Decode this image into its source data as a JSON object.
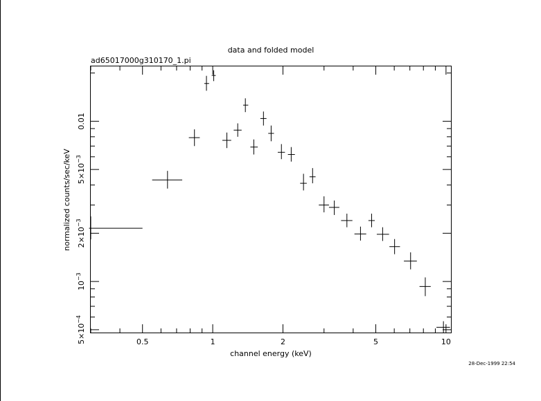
{
  "chart_data": {
    "type": "scatter",
    "title": "data and folded model",
    "subtitle": "ad65017000g310170_1.pi",
    "xlabel": "channel energy (keV)",
    "ylabel": "normalized counts/sec/keV",
    "timestamp": "28-Dec-1999 22:54",
    "xscale": "log",
    "yscale": "log",
    "xlim": [
      0.3,
      10.5
    ],
    "ylim": [
      0.00048,
      0.022
    ],
    "x_ticks": [
      {
        "value": 0.5,
        "label": "0.5"
      },
      {
        "value": 1,
        "label": "1"
      },
      {
        "value": 2,
        "label": "2"
      },
      {
        "value": 5,
        "label": "5"
      },
      {
        "value": 10,
        "label": "10"
      }
    ],
    "y_ticks": [
      {
        "value": 0.0005,
        "mantissa": "5×10",
        "exponent": "−4"
      },
      {
        "value": 0.001,
        "mantissa": "10",
        "exponent": "−3"
      },
      {
        "value": 0.002,
        "mantissa": "2×10",
        "exponent": "−3"
      },
      {
        "value": 0.005,
        "mantissa": "5×10",
        "exponent": "−3"
      },
      {
        "value": 0.01,
        "mantissa": "0.01",
        "exponent": ""
      }
    ],
    "series": [
      {
        "points": [
          {
            "x": 0.3,
            "xlo": 0.295,
            "xhi": 0.5,
            "y": 0.00215,
            "ylo": 0.00183,
            "yhi": 0.00255
          },
          {
            "x": 0.64,
            "xlo": 0.55,
            "xhi": 0.74,
            "y": 0.0043,
            "ylo": 0.0038,
            "yhi": 0.0049
          },
          {
            "x": 0.835,
            "xlo": 0.79,
            "xhi": 0.88,
            "y": 0.0079,
            "ylo": 0.007,
            "yhi": 0.0089
          },
          {
            "x": 0.94,
            "xlo": 0.92,
            "xhi": 0.965,
            "y": 0.0172,
            "ylo": 0.0155,
            "yhi": 0.0192
          },
          {
            "x": 1.01,
            "xlo": 0.99,
            "xhi": 1.03,
            "y": 0.0193,
            "ylo": 0.0178,
            "yhi": 0.0208
          },
          {
            "x": 1.15,
            "xlo": 1.1,
            "xhi": 1.2,
            "y": 0.0076,
            "ylo": 0.0068,
            "yhi": 0.0085
          },
          {
            "x": 1.28,
            "xlo": 1.23,
            "xhi": 1.33,
            "y": 0.0088,
            "ylo": 0.008,
            "yhi": 0.0097
          },
          {
            "x": 1.38,
            "xlo": 1.35,
            "xhi": 1.42,
            "y": 0.0126,
            "ylo": 0.0114,
            "yhi": 0.0139
          },
          {
            "x": 1.5,
            "xlo": 1.45,
            "xhi": 1.56,
            "y": 0.0069,
            "ylo": 0.0062,
            "yhi": 0.0077
          },
          {
            "x": 1.65,
            "xlo": 1.6,
            "xhi": 1.7,
            "y": 0.0104,
            "ylo": 0.0094,
            "yhi": 0.0115
          },
          {
            "x": 1.78,
            "xlo": 1.73,
            "xhi": 1.83,
            "y": 0.0084,
            "ylo": 0.0075,
            "yhi": 0.0094
          },
          {
            "x": 1.97,
            "xlo": 1.9,
            "xhi": 2.04,
            "y": 0.0064,
            "ylo": 0.0058,
            "yhi": 0.0072
          },
          {
            "x": 2.17,
            "xlo": 2.1,
            "xhi": 2.25,
            "y": 0.0062,
            "ylo": 0.0056,
            "yhi": 0.0069
          },
          {
            "x": 2.45,
            "xlo": 2.37,
            "xhi": 2.53,
            "y": 0.0041,
            "ylo": 0.0037,
            "yhi": 0.0047
          },
          {
            "x": 2.68,
            "xlo": 2.6,
            "xhi": 2.76,
            "y": 0.0045,
            "ylo": 0.0041,
            "yhi": 0.0051
          },
          {
            "x": 3.0,
            "xlo": 2.85,
            "xhi": 3.15,
            "y": 0.003,
            "ylo": 0.0027,
            "yhi": 0.0034
          },
          {
            "x": 3.32,
            "xlo": 3.15,
            "xhi": 3.49,
            "y": 0.0029,
            "ylo": 0.0026,
            "yhi": 0.0032
          },
          {
            "x": 3.76,
            "xlo": 3.55,
            "xhi": 3.97,
            "y": 0.0024,
            "ylo": 0.00218,
            "yhi": 0.00265
          },
          {
            "x": 4.3,
            "xlo": 4.05,
            "xhi": 4.55,
            "y": 0.00198,
            "ylo": 0.0018,
            "yhi": 0.0022
          },
          {
            "x": 4.8,
            "xlo": 4.65,
            "xhi": 4.95,
            "y": 0.0024,
            "ylo": 0.00218,
            "yhi": 0.00265
          },
          {
            "x": 5.35,
            "xlo": 5.05,
            "xhi": 5.7,
            "y": 0.00197,
            "ylo": 0.00179,
            "yhi": 0.00218
          },
          {
            "x": 6.02,
            "xlo": 5.72,
            "xhi": 6.35,
            "y": 0.00165,
            "ylo": 0.00148,
            "yhi": 0.00184
          },
          {
            "x": 7.05,
            "xlo": 6.6,
            "xhi": 7.5,
            "y": 0.00134,
            "ylo": 0.00119,
            "yhi": 0.00152
          },
          {
            "x": 8.15,
            "xlo": 7.7,
            "xhi": 8.6,
            "y": 0.00093,
            "ylo": 0.00081,
            "yhi": 0.00106
          },
          {
            "x": 9.75,
            "xlo": 9.1,
            "xhi": 10.4,
            "y": 0.000518,
            "ylo": 0.00048,
            "yhi": 0.000565
          }
        ]
      }
    ]
  }
}
